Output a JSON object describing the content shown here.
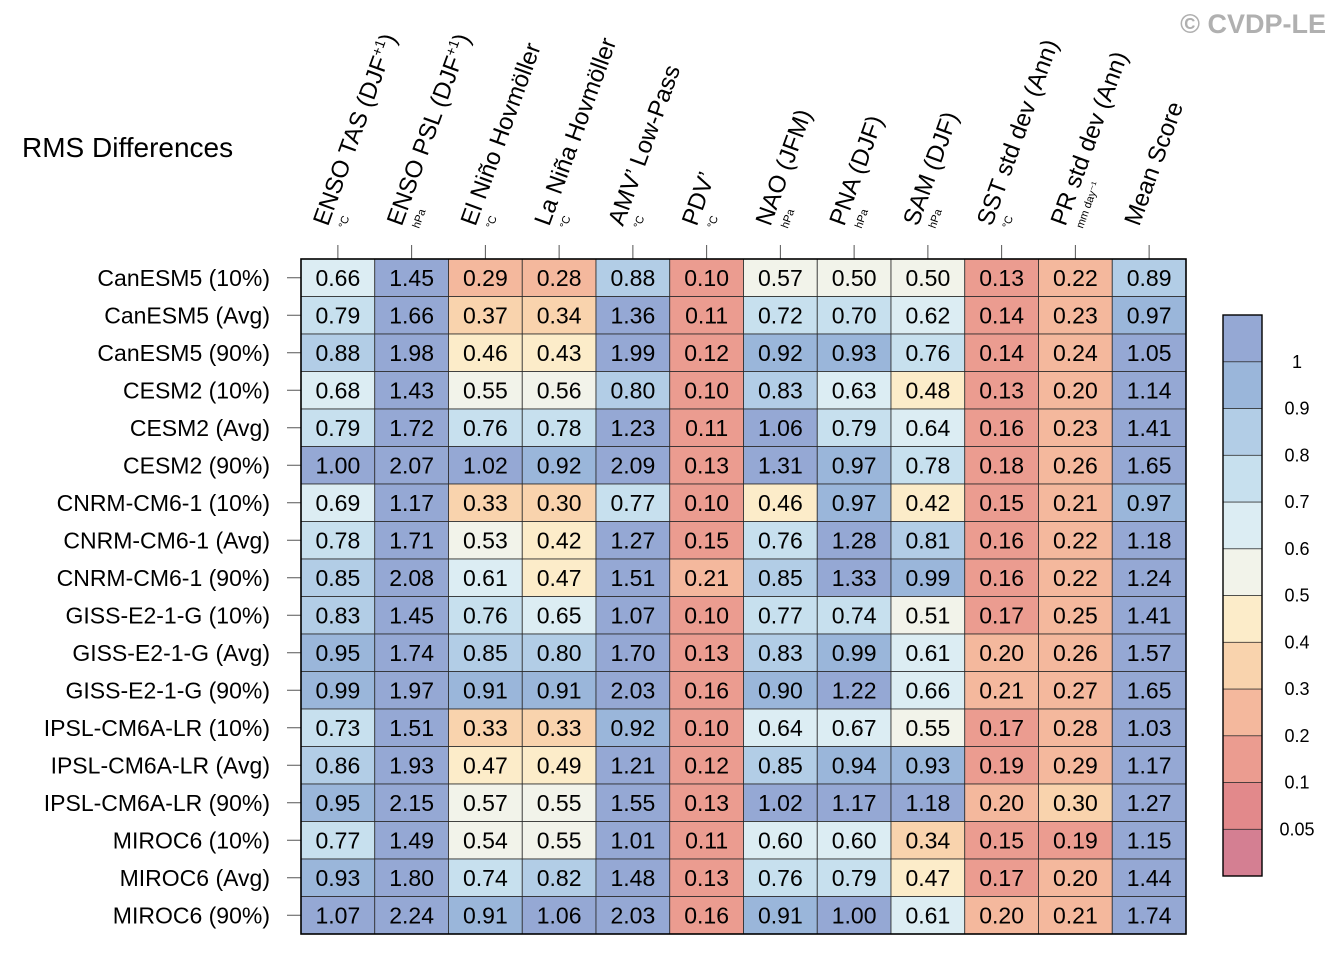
{
  "watermark": "© CVDP-LE",
  "chart_data": {
    "type": "heatmap",
    "title": "RMS Differences",
    "columns": [
      {
        "label": "ENSO TAS (DJF",
        "sup": "+1",
        "tail": ")",
        "unit": "°C"
      },
      {
        "label": "ENSO PSL (DJF",
        "sup": "+1",
        "tail": ")",
        "unit": "hPa"
      },
      {
        "label": "El Niño Hovmöller",
        "sup": "",
        "tail": "",
        "unit": "°C"
      },
      {
        "label": "La Niña Hovmöller",
        "sup": "",
        "tail": "",
        "unit": "°C"
      },
      {
        "label": "AMV’ Low-Pass",
        "sup": "",
        "tail": "",
        "unit": "°C"
      },
      {
        "label": "PDV’",
        "sup": "",
        "tail": "",
        "unit": "°C"
      },
      {
        "label": "NAO (JFM)",
        "sup": "",
        "tail": "",
        "unit": "hPa"
      },
      {
        "label": "PNA (DJF)",
        "sup": "",
        "tail": "",
        "unit": "hPa"
      },
      {
        "label": "SAM (DJF)",
        "sup": "",
        "tail": "",
        "unit": "hPa"
      },
      {
        "label": "SST std dev (Ann)",
        "sup": "",
        "tail": "",
        "unit": "°C"
      },
      {
        "label": "PR std dev (Ann)",
        "sup": "",
        "tail": "",
        "unit": "mm day⁻¹"
      },
      {
        "label": "Mean Score",
        "sup": "",
        "tail": "",
        "unit": ""
      }
    ],
    "rows": [
      {
        "label": "CanESM5 (10%)",
        "values": [
          "0.66",
          "1.45",
          "0.29",
          "0.28",
          "0.88",
          "0.10",
          "0.57",
          "0.50",
          "0.50",
          "0.13",
          "0.22",
          "0.89"
        ]
      },
      {
        "label": "CanESM5 (Avg)",
        "values": [
          "0.79",
          "1.66",
          "0.37",
          "0.34",
          "1.36",
          "0.11",
          "0.72",
          "0.70",
          "0.62",
          "0.14",
          "0.23",
          "0.97"
        ]
      },
      {
        "label": "CanESM5 (90%)",
        "values": [
          "0.88",
          "1.98",
          "0.46",
          "0.43",
          "1.99",
          "0.12",
          "0.92",
          "0.93",
          "0.76",
          "0.14",
          "0.24",
          "1.05"
        ]
      },
      {
        "label": "CESM2 (10%)",
        "values": [
          "0.68",
          "1.43",
          "0.55",
          "0.56",
          "0.80",
          "0.10",
          "0.83",
          "0.63",
          "0.48",
          "0.13",
          "0.20",
          "1.14"
        ]
      },
      {
        "label": "CESM2 (Avg)",
        "values": [
          "0.79",
          "1.72",
          "0.76",
          "0.78",
          "1.23",
          "0.11",
          "1.06",
          "0.79",
          "0.64",
          "0.16",
          "0.23",
          "1.41"
        ]
      },
      {
        "label": "CESM2 (90%)",
        "values": [
          "1.00",
          "2.07",
          "1.02",
          "0.92",
          "2.09",
          "0.13",
          "1.31",
          "0.97",
          "0.78",
          "0.18",
          "0.26",
          "1.65"
        ]
      },
      {
        "label": "CNRM-CM6-1 (10%)",
        "values": [
          "0.69",
          "1.17",
          "0.33",
          "0.30",
          "0.77",
          "0.10",
          "0.46",
          "0.97",
          "0.42",
          "0.15",
          "0.21",
          "0.97"
        ]
      },
      {
        "label": "CNRM-CM6-1 (Avg)",
        "values": [
          "0.78",
          "1.71",
          "0.53",
          "0.42",
          "1.27",
          "0.15",
          "0.76",
          "1.28",
          "0.81",
          "0.16",
          "0.22",
          "1.18"
        ]
      },
      {
        "label": "CNRM-CM6-1 (90%)",
        "values": [
          "0.85",
          "2.08",
          "0.61",
          "0.47",
          "1.51",
          "0.21",
          "0.85",
          "1.33",
          "0.99",
          "0.16",
          "0.22",
          "1.24"
        ]
      },
      {
        "label": "GISS-E2-1-G (10%)",
        "values": [
          "0.83",
          "1.45",
          "0.76",
          "0.65",
          "1.07",
          "0.10",
          "0.77",
          "0.74",
          "0.51",
          "0.17",
          "0.25",
          "1.41"
        ]
      },
      {
        "label": "GISS-E2-1-G (Avg)",
        "values": [
          "0.95",
          "1.74",
          "0.85",
          "0.80",
          "1.70",
          "0.13",
          "0.83",
          "0.99",
          "0.61",
          "0.20",
          "0.26",
          "1.57"
        ]
      },
      {
        "label": "GISS-E2-1-G (90%)",
        "values": [
          "0.99",
          "1.97",
          "0.91",
          "0.91",
          "2.03",
          "0.16",
          "0.90",
          "1.22",
          "0.66",
          "0.21",
          "0.27",
          "1.65"
        ]
      },
      {
        "label": "IPSL-CM6A-LR (10%)",
        "values": [
          "0.73",
          "1.51",
          "0.33",
          "0.33",
          "0.92",
          "0.10",
          "0.64",
          "0.67",
          "0.55",
          "0.17",
          "0.28",
          "1.03"
        ]
      },
      {
        "label": "IPSL-CM6A-LR (Avg)",
        "values": [
          "0.86",
          "1.93",
          "0.47",
          "0.49",
          "1.21",
          "0.12",
          "0.85",
          "0.94",
          "0.93",
          "0.19",
          "0.29",
          "1.17"
        ]
      },
      {
        "label": "IPSL-CM6A-LR (90%)",
        "values": [
          "0.95",
          "2.15",
          "0.57",
          "0.55",
          "1.55",
          "0.13",
          "1.02",
          "1.17",
          "1.18",
          "0.20",
          "0.30",
          "1.27"
        ]
      },
      {
        "label": "MIROC6 (10%)",
        "values": [
          "0.77",
          "1.49",
          "0.54",
          "0.55",
          "1.01",
          "0.11",
          "0.60",
          "0.60",
          "0.34",
          "0.15",
          "0.19",
          "1.15"
        ]
      },
      {
        "label": "MIROC6 (Avg)",
        "values": [
          "0.93",
          "1.80",
          "0.74",
          "0.82",
          "1.48",
          "0.13",
          "0.76",
          "0.79",
          "0.47",
          "0.17",
          "0.20",
          "1.44"
        ]
      },
      {
        "label": "MIROC6 (90%)",
        "values": [
          "1.07",
          "2.24",
          "0.91",
          "1.06",
          "2.03",
          "0.16",
          "0.91",
          "1.00",
          "0.61",
          "0.20",
          "0.21",
          "1.74"
        ]
      }
    ],
    "colorbar": {
      "levels": [
        0.05,
        0.1,
        0.2,
        0.3,
        0.4,
        0.5,
        0.6,
        0.7,
        0.8,
        0.9,
        1
      ],
      "labels": [
        "0.05",
        "0.1",
        "0.2",
        "0.3",
        "0.4",
        "0.5",
        "0.6",
        "0.7",
        "0.8",
        "0.9",
        "1"
      ],
      "colors": [
        "#d47f92",
        "#e2898b",
        "#eb9c90",
        "#f4b89d",
        "#f9d3ad",
        "#fcecc9",
        "#f2f3ea",
        "#dcedf3",
        "#c7e0ee",
        "#b2cde6",
        "#9ab6da",
        "#95a8d4"
      ]
    }
  }
}
